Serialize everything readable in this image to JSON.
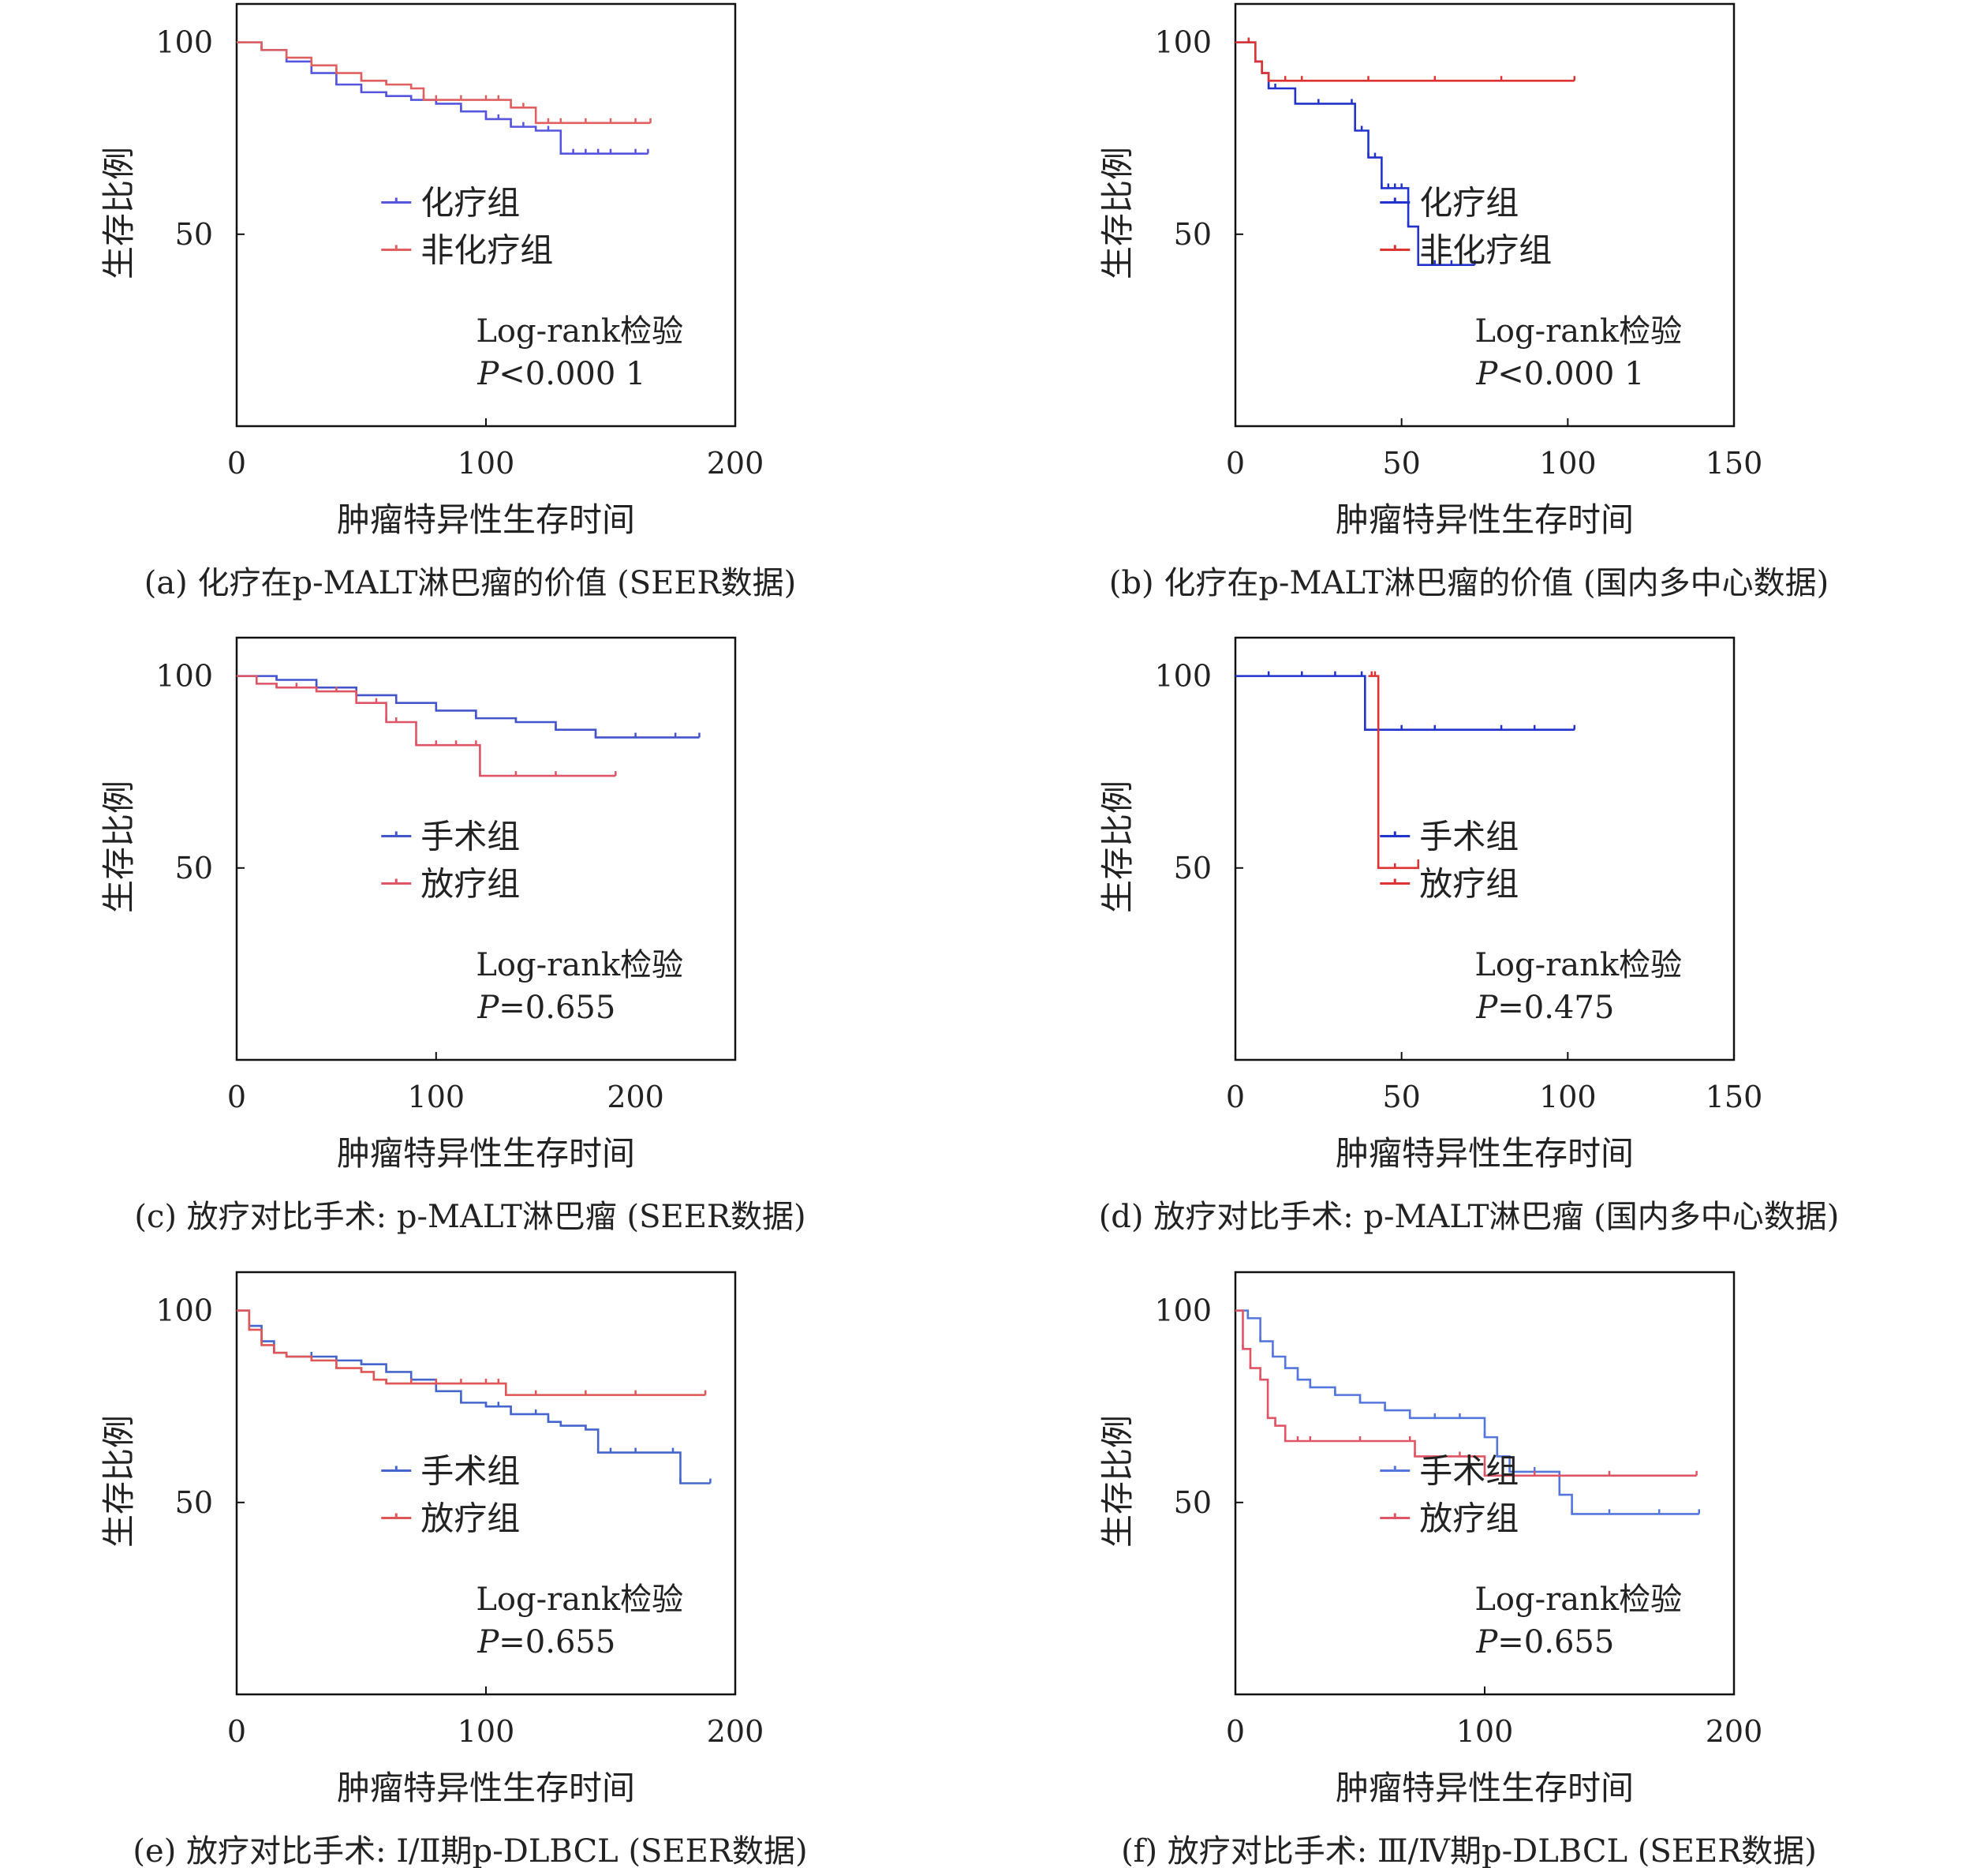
{
  "chart_data": [
    {
      "type": "line",
      "caption": "(a) 化疗在p-MALT淋巴瘤的价值 (SEER数据)",
      "xlabel": "肿瘤特异性生存时间",
      "ylabel": "生存比例",
      "xlim": [
        0,
        200
      ],
      "ylim": [
        0,
        110
      ],
      "xticks": [
        0,
        100,
        200
      ],
      "yticks": [
        50,
        100
      ],
      "xtick_labels": [
        "0",
        "100",
        "200"
      ],
      "ytick_labels": [
        "50",
        "100"
      ],
      "legend": "center-right",
      "annotation": {
        "test": "Log-rank检验",
        "p_var": "P",
        "p_rest": "<0.000 1"
      },
      "series": [
        {
          "name": "化疗组",
          "color": "#5555dd",
          "x": [
            0,
            10,
            20,
            30,
            40,
            50,
            60,
            70,
            80,
            90,
            100,
            105,
            110,
            115,
            120,
            125,
            130,
            135,
            140,
            145,
            150,
            160,
            165
          ],
          "y": [
            100,
            98,
            95,
            92,
            89,
            87,
            86,
            85,
            84,
            82,
            80,
            80,
            78,
            78,
            77,
            77,
            71,
            71,
            71,
            71,
            71,
            71,
            71
          ]
        },
        {
          "name": "非化疗组",
          "color": "#e06060",
          "x": [
            0,
            10,
            20,
            30,
            40,
            50,
            60,
            70,
            75,
            80,
            90,
            100,
            105,
            110,
            115,
            120,
            125,
            130,
            140,
            150,
            160,
            166
          ],
          "y": [
            100,
            98,
            96,
            94,
            92,
            90,
            89,
            88,
            85,
            85,
            85,
            85,
            85,
            83,
            83,
            79,
            79,
            79,
            79,
            79,
            79,
            79
          ]
        }
      ]
    },
    {
      "type": "line",
      "caption": "(b) 化疗在p-MALT淋巴瘤的价值 (国内多中心数据)",
      "xlabel": "肿瘤特异性生存时间",
      "ylabel": "生存比例",
      "xlim": [
        0,
        150
      ],
      "ylim": [
        0,
        110
      ],
      "xticks": [
        0,
        50,
        100,
        150
      ],
      "yticks": [
        50,
        100
      ],
      "xtick_labels": [
        "0",
        "50",
        "100",
        "150"
      ],
      "ytick_labels": [
        "50",
        "100"
      ],
      "legend": "center-right",
      "annotation": {
        "test": "Log-rank检验",
        "p_var": "P",
        "p_rest": "<0.000 1"
      },
      "series": [
        {
          "name": "化疗组",
          "color": "#2233cc",
          "x": [
            0,
            4,
            6,
            8,
            10,
            12,
            18,
            25,
            35,
            36,
            38,
            40,
            42,
            44,
            46,
            48,
            50,
            52,
            55,
            60,
            65,
            72
          ],
          "y": [
            100,
            100,
            95,
            92,
            88,
            88,
            84,
            84,
            84,
            77,
            77,
            70,
            70,
            62,
            62,
            62,
            62,
            52,
            42,
            42,
            42,
            42
          ]
        },
        {
          "name": "非化疗组",
          "color": "#dd3333",
          "x": [
            0,
            4,
            6,
            8,
            10,
            15,
            20,
            40,
            60,
            80,
            102
          ],
          "y": [
            100,
            100,
            95,
            92,
            90,
            90,
            90,
            90,
            90,
            90,
            90
          ]
        }
      ]
    },
    {
      "type": "line",
      "caption": "(c) 放疗对比手术: p-MALT淋巴瘤 (SEER数据)",
      "xlabel": "肿瘤特异性生存时间",
      "ylabel": "生存比例",
      "xlim": [
        0,
        250
      ],
      "ylim": [
        0,
        110
      ],
      "xticks": [
        0,
        100,
        200
      ],
      "yticks": [
        50,
        100
      ],
      "xtick_labels": [
        "0",
        "100",
        "200"
      ],
      "ytick_labels": [
        "50",
        "100"
      ],
      "legend": "center-right",
      "annotation": {
        "test": "Log-rank检验",
        "p_var": "P",
        "p_rest": "=0.655"
      },
      "series": [
        {
          "name": "手术组",
          "color": "#4455cc",
          "x": [
            0,
            20,
            40,
            60,
            80,
            100,
            120,
            140,
            160,
            180,
            200,
            220,
            232
          ],
          "y": [
            100,
            99,
            97,
            95,
            93,
            91,
            89,
            88,
            86,
            84,
            84,
            84,
            84
          ]
        },
        {
          "name": "放疗组",
          "color": "#dd5566",
          "x": [
            0,
            10,
            20,
            30,
            40,
            50,
            60,
            70,
            75,
            80,
            90,
            100,
            110,
            120,
            122,
            140,
            160,
            190
          ],
          "y": [
            100,
            98,
            97,
            97,
            96,
            96,
            93,
            93,
            88,
            88,
            82,
            82,
            82,
            82,
            74,
            74,
            74,
            74
          ]
        }
      ]
    },
    {
      "type": "line",
      "caption": "(d) 放疗对比手术: p-MALT淋巴瘤 (国内多中心数据)",
      "xlabel": "肿瘤特异性生存时间",
      "ylabel": "生存比例",
      "xlim": [
        0,
        150
      ],
      "ylim": [
        0,
        110
      ],
      "xticks": [
        0,
        50,
        100,
        150
      ],
      "yticks": [
        50,
        100
      ],
      "xtick_labels": [
        "0",
        "50",
        "100",
        "150"
      ],
      "ytick_labels": [
        "50",
        "100"
      ],
      "legend": "center-right",
      "annotation": {
        "test": "Log-rank检验",
        "p_var": "P",
        "p_rest": "=0.475"
      },
      "series": [
        {
          "name": "手术组",
          "color": "#2233cc",
          "x": [
            0,
            10,
            20,
            30,
            38,
            39,
            50,
            60,
            80,
            90,
            102
          ],
          "y": [
            100,
            100,
            100,
            100,
            100,
            86,
            86,
            86,
            86,
            86,
            86
          ]
        },
        {
          "name": "放疗组",
          "color": "#dd3333",
          "x": [
            40,
            41,
            42,
            43,
            48,
            55
          ],
          "y": [
            100,
            100,
            100,
            50,
            50,
            51
          ]
        }
      ]
    },
    {
      "type": "line",
      "caption": "(e) 放疗对比手术: Ⅰ/Ⅱ期p-DLBCL (SEER数据)",
      "xlabel": "肿瘤特异性生存时间",
      "ylabel": "生存比例",
      "xlim": [
        0,
        200
      ],
      "ylim": [
        0,
        110
      ],
      "xticks": [
        0,
        100,
        200
      ],
      "yticks": [
        50,
        100
      ],
      "xtick_labels": [
        "0",
        "100",
        "200"
      ],
      "ytick_labels": [
        "50",
        "100"
      ],
      "legend": "center-right",
      "annotation": {
        "test": "Log-rank检验",
        "p_var": "P",
        "p_rest": "=0.655"
      },
      "series": [
        {
          "name": "手术组",
          "color": "#4466cc",
          "x": [
            0,
            5,
            10,
            15,
            20,
            30,
            40,
            50,
            60,
            70,
            80,
            90,
            100,
            105,
            110,
            120,
            125,
            130,
            140,
            145,
            150,
            160,
            175,
            178,
            190
          ],
          "y": [
            100,
            96,
            92,
            89,
            88,
            88,
            87,
            86,
            84,
            82,
            79,
            76,
            75,
            75,
            73,
            73,
            71,
            70,
            69,
            63,
            63,
            63,
            63,
            55,
            55
          ]
        },
        {
          "name": "放疗组",
          "color": "#e05555",
          "x": [
            0,
            5,
            10,
            15,
            20,
            30,
            40,
            50,
            55,
            60,
            70,
            80,
            90,
            100,
            105,
            108,
            120,
            140,
            160,
            188
          ],
          "y": [
            100,
            95,
            91,
            89,
            88,
            87,
            85,
            84,
            82,
            81,
            81,
            81,
            81,
            81,
            81,
            78,
            78,
            78,
            78,
            78
          ]
        }
      ]
    },
    {
      "type": "line",
      "caption": "(f) 放疗对比手术: Ⅲ/Ⅳ期p-DLBCL (SEER数据)",
      "xlabel": "肿瘤特异性生存时间",
      "ylabel": "生存比例",
      "xlim": [
        0,
        200
      ],
      "ylim": [
        0,
        110
      ],
      "xticks": [
        0,
        100,
        200
      ],
      "yticks": [
        50,
        100
      ],
      "xtick_labels": [
        "0",
        "100",
        "200"
      ],
      "ytick_labels": [
        "50",
        "100"
      ],
      "legend": "center-right",
      "annotation": {
        "test": "Log-rank检验",
        "p_var": "P",
        "p_rest": "=0.655"
      },
      "series": [
        {
          "name": "手术组",
          "color": "#5577dd",
          "x": [
            0,
            5,
            10,
            15,
            20,
            25,
            30,
            40,
            50,
            60,
            70,
            80,
            90,
            100,
            105,
            110,
            120,
            130,
            135,
            150,
            170,
            186
          ],
          "y": [
            100,
            98,
            92,
            88,
            85,
            82,
            80,
            78,
            76,
            74,
            72,
            72,
            72,
            67,
            62,
            58,
            58,
            52,
            47,
            47,
            47,
            47
          ]
        },
        {
          "name": "放疗组",
          "color": "#e05566",
          "x": [
            0,
            3,
            6,
            10,
            13,
            16,
            20,
            25,
            30,
            50,
            70,
            72,
            90,
            100,
            120,
            150,
            185
          ],
          "y": [
            100,
            90,
            85,
            82,
            72,
            70,
            66,
            66,
            66,
            66,
            66,
            62,
            62,
            57,
            57,
            57,
            57
          ]
        }
      ]
    }
  ]
}
